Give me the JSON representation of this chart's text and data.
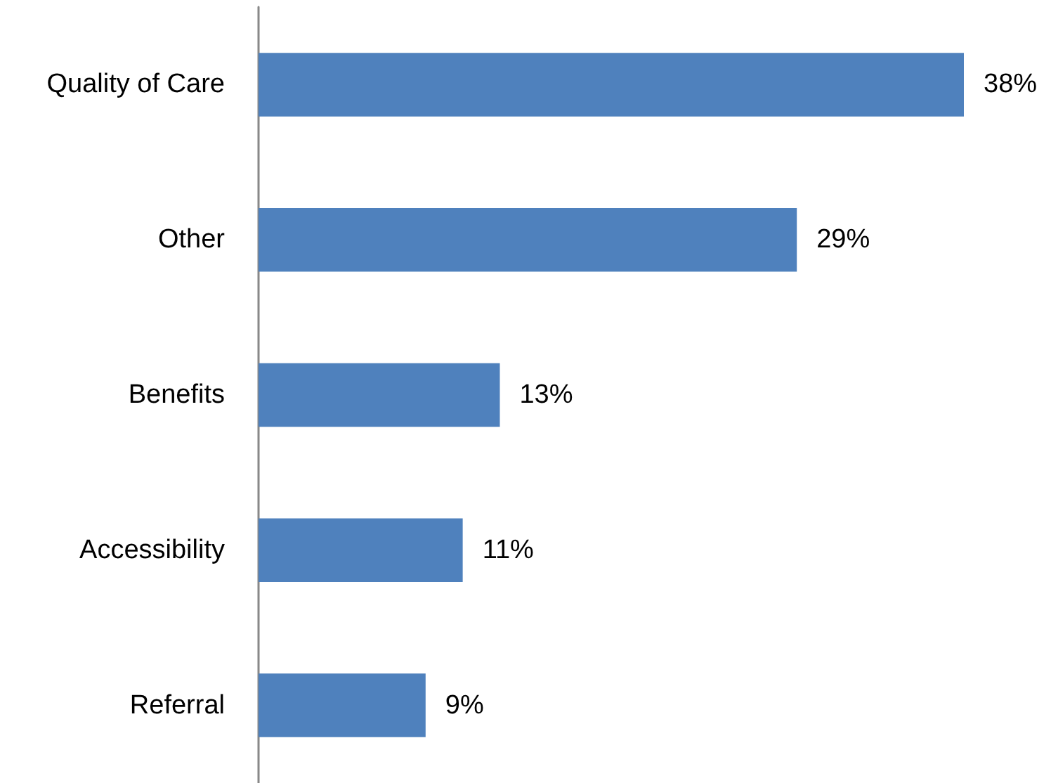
{
  "chart_data": {
    "type": "bar",
    "orientation": "horizontal",
    "categories": [
      "Quality of Care",
      "Other",
      "Benefits",
      "Accessibility",
      "Referral"
    ],
    "values": [
      38,
      29,
      13,
      11,
      9
    ],
    "value_labels": [
      "38%",
      "29%",
      "13%",
      "11%",
      "9%"
    ],
    "color": "#4f81bd"
  }
}
